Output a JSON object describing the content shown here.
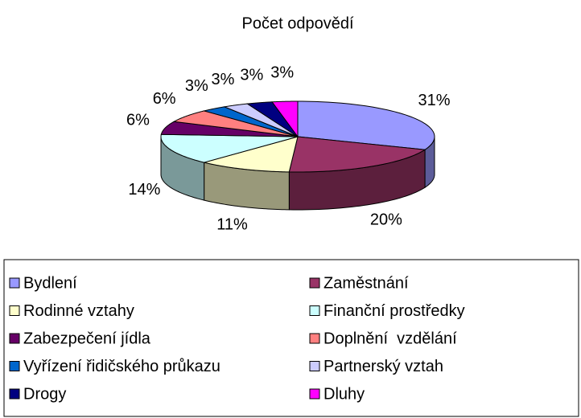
{
  "chart_data": {
    "type": "pie3d",
    "title": "Počet odpovědí",
    "categories": [
      "Bydlení",
      "Zaměstnání",
      "Rodinné vztahy",
      "Finanční prostředky",
      "Zabezpečení jídla",
      "Doplnění  vzdělání",
      "Vyřízení řidičského průkazu",
      "Partnerský vztah",
      "Drogy",
      "Dluhy"
    ],
    "values": [
      31,
      20,
      11,
      14,
      6,
      6,
      3,
      3,
      3,
      3
    ],
    "value_labels": [
      "31%",
      "20%",
      "11%",
      "14%",
      "6%",
      "6%",
      "3%",
      "3%",
      "3%",
      "3%"
    ],
    "colors": [
      "#9999ff",
      "#993366",
      "#ffffcc",
      "#ccffff",
      "#660066",
      "#ff8080",
      "#0066cc",
      "#ccccff",
      "#000080",
      "#ff00ff"
    ],
    "legend": "bottom"
  }
}
